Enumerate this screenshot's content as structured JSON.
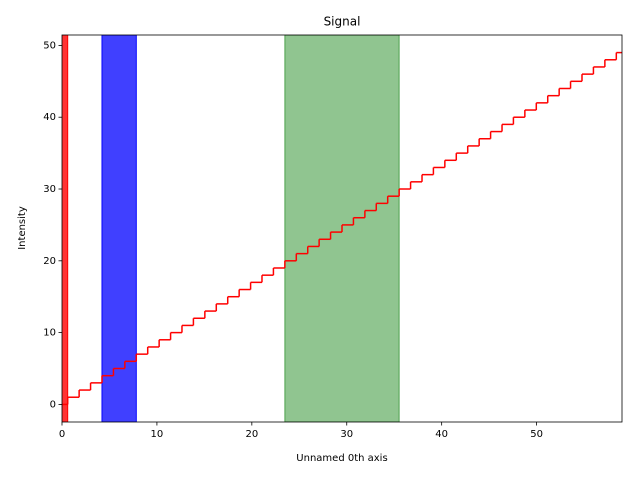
{
  "chart_data": {
    "type": "step",
    "title": "Signal",
    "xlabel": "Unnamed 0th axis",
    "ylabel": "Intensity",
    "step_where": "mid",
    "x": [
      0,
      1.2,
      2.41,
      3.61,
      4.82,
      6.02,
      7.22,
      8.43,
      9.63,
      10.84,
      12.04,
      13.24,
      14.45,
      15.65,
      16.86,
      18.06,
      19.27,
      20.47,
      21.67,
      22.88,
      24.08,
      25.29,
      26.49,
      27.69,
      28.9,
      30.1,
      31.31,
      32.51,
      33.71,
      34.92,
      36.12,
      37.33,
      38.53,
      39.73,
      40.94,
      42.14,
      43.35,
      44.55,
      45.76,
      46.96,
      48.16,
      49.37,
      50.57,
      51.78,
      52.98,
      54.18,
      55.39,
      56.59,
      57.8,
      59
    ],
    "series": [
      {
        "color": "#ff0000",
        "values": [
          0,
          1,
          2,
          3,
          4,
          5,
          6,
          7,
          8,
          9,
          10,
          11,
          12,
          13,
          14,
          15,
          16,
          17,
          18,
          19,
          20,
          21,
          22,
          23,
          24,
          25,
          26,
          27,
          28,
          29,
          30,
          31,
          32,
          33,
          34,
          35,
          36,
          37,
          38,
          39,
          40,
          41,
          42,
          43,
          44,
          45,
          46,
          47,
          48,
          49
        ]
      }
    ],
    "spans": [
      {
        "x": [
          -0.6,
          0.6
        ],
        "color": "#ff0000",
        "alpha": 0.8
      },
      {
        "x": [
          4.21,
          7.83
        ],
        "color": "#0000ff",
        "alpha": 0.75
      },
      {
        "x": [
          23.48,
          35.52
        ],
        "color": "#228b22",
        "alpha": 0.5
      }
    ],
    "xlim": [
      0,
      59
    ],
    "xticks": [
      0,
      10,
      20,
      30,
      40,
      50
    ],
    "ylim": [
      -2.45,
      51.45
    ],
    "yticks": [
      0,
      10,
      20,
      30,
      40,
      50
    ]
  }
}
